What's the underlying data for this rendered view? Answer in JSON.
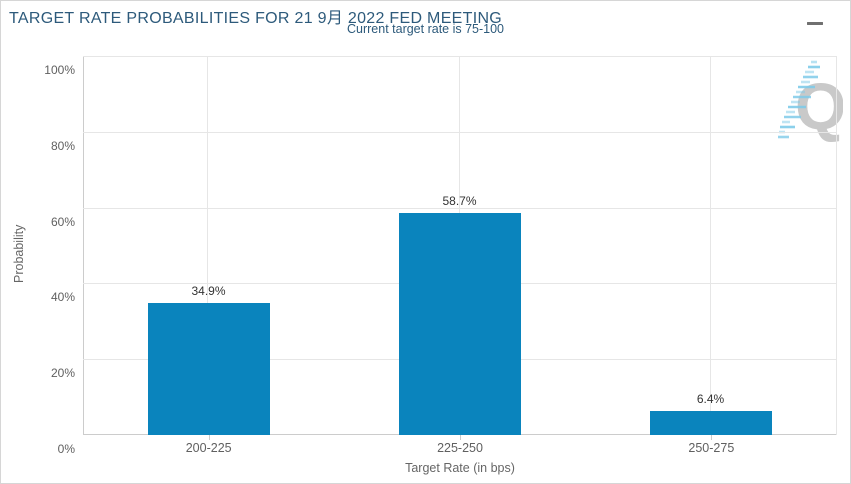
{
  "header": {
    "title": "TARGET RATE PROBABILITIES FOR 21 9月 2022 FED MEETING",
    "subtitle": "Current target rate is 75-100"
  },
  "chart_data": {
    "type": "bar",
    "title": "TARGET RATE PROBABILITIES FOR 21 9月 2022 FED MEETING",
    "subtitle": "Current target rate is 75-100",
    "categories": [
      "200-225",
      "225-250",
      "250-275"
    ],
    "values": [
      34.9,
      58.7,
      6.4
    ],
    "value_labels": [
      "34.9%",
      "58.7%",
      "6.4%"
    ],
    "xlabel": "Target Rate (in bps)",
    "ylabel": "Probability",
    "ylim": [
      0,
      100
    ],
    "ytick_labels": [
      "0%",
      "20%",
      "40%",
      "60%",
      "80%",
      "100%"
    ],
    "grid": true,
    "legend": "none",
    "bar_color": "#0a84bd"
  },
  "colors": {
    "title_text": "#2d5a7b",
    "axis_label": "#606060",
    "gridline": "#e6e6e6",
    "axis_line": "#cccccc",
    "bar": "#0a84bd",
    "watermark_gray": "#c9c9c9",
    "watermark_blue": "#7fcbe9"
  },
  "icons": {
    "context_menu": "hamburger-menu",
    "watermark": "quikstrike-q-logo"
  }
}
